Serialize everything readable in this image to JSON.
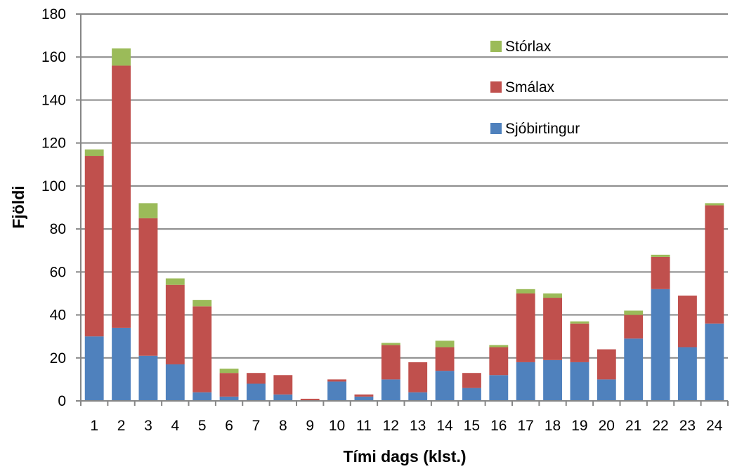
{
  "chart_data": {
    "type": "bar",
    "stacked": true,
    "title": "",
    "xlabel": "Tími dags (klst.)",
    "ylabel": "Fjöldi",
    "ylim": [
      0,
      180
    ],
    "ytick_step": 20,
    "yticks": [
      "0",
      "20",
      "40",
      "60",
      "80",
      "100",
      "120",
      "140",
      "160",
      "180"
    ],
    "grid": true,
    "legend_position": "top-right",
    "categories": [
      "1",
      "2",
      "3",
      "4",
      "5",
      "6",
      "7",
      "8",
      "9",
      "10",
      "11",
      "12",
      "13",
      "14",
      "15",
      "16",
      "17",
      "18",
      "19",
      "20",
      "21",
      "22",
      "23",
      "24"
    ],
    "series": [
      {
        "name": "Sjóbirtingur",
        "color": "#4F81BD",
        "values": [
          30,
          34,
          21,
          17,
          4,
          2,
          8,
          3,
          0,
          9,
          2,
          10,
          4,
          14,
          6,
          12,
          18,
          19,
          18,
          10,
          29,
          52,
          25,
          36
        ]
      },
      {
        "name": "Smálax",
        "color": "#C0504D",
        "values": [
          84,
          122,
          64,
          37,
          40,
          11,
          5,
          9,
          1,
          1,
          1,
          16,
          14,
          11,
          7,
          13,
          32,
          29,
          18,
          14,
          11,
          15,
          24,
          55
        ]
      },
      {
        "name": "Stórlax",
        "color": "#9BBB59",
        "values": [
          3,
          8,
          7,
          3,
          3,
          2,
          0,
          0,
          0,
          0,
          0,
          1,
          0,
          3,
          0,
          1,
          2,
          2,
          1,
          0,
          2,
          1,
          0,
          1
        ]
      }
    ],
    "legend_order": [
      "Stórlax",
      "Smálax",
      "Sjóbirtingur"
    ],
    "gridline_color": "#868686",
    "axis_color": "#868686"
  }
}
